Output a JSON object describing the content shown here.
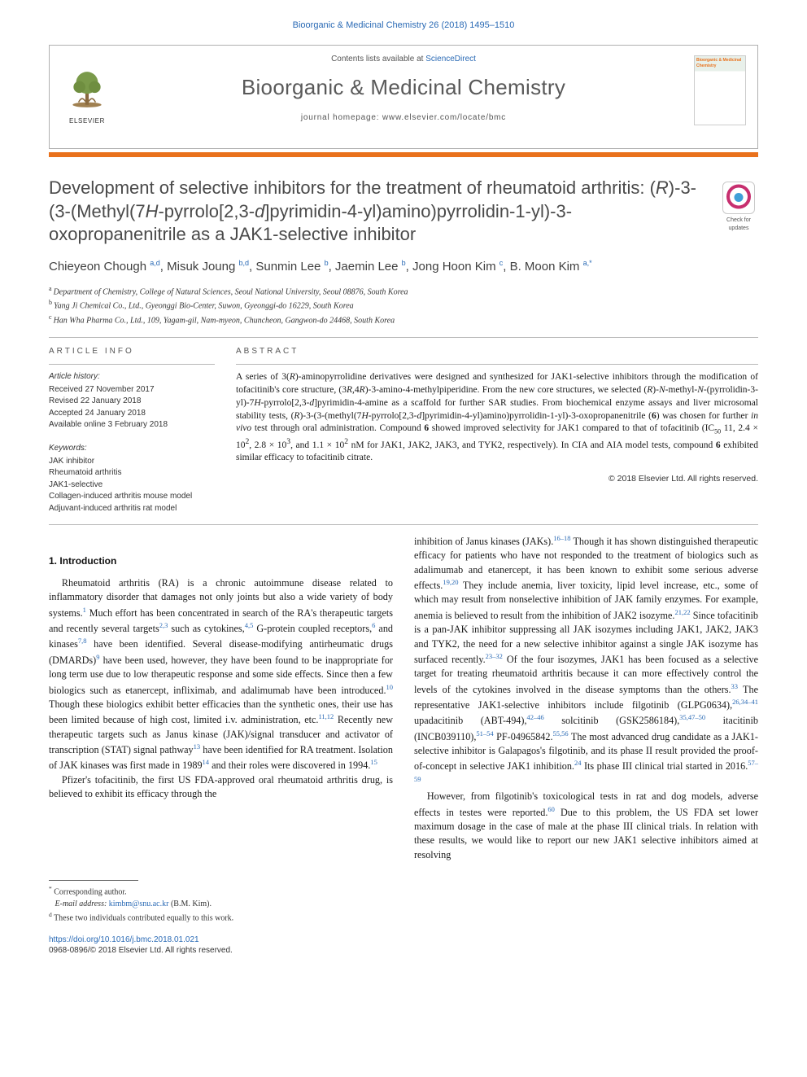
{
  "page_reference": "Bioorganic & Medicinal Chemistry 26 (2018) 1495–1510",
  "header": {
    "contents_line_prefix": "Contents lists available at ",
    "contents_link": "ScienceDirect",
    "journal_name": "Bioorganic & Medicinal Chemistry",
    "homepage_prefix": "journal homepage: ",
    "homepage_url": "www.elsevier.com/locate/bmc",
    "publisher_wordmark": "ELSEVIER",
    "cover_caption": "Bioorganic & Medicinal Chemistry"
  },
  "colors": {
    "accent_bar": "#e9711c",
    "link": "#2a6ab5",
    "heading_gray": "#4a4a4a"
  },
  "article": {
    "title_html": "Development of selective inhibitors for the treatment of rheumatoid arthritis: (<i>R</i>)-3-(3-(Methyl(7<i>H</i>-pyrrolo[2,3-<i>d</i>]pyrimidin-4-yl)amino)pyrrolidin-1-yl)-3-oxopropanenitrile as a JAK1-selective inhibitor",
    "check_updates_label": "Check for updates",
    "authors_html": "Chieyeon Chough <sup>a,d</sup>, Misuk Joung <sup>b,d</sup>, Sunmin Lee <sup>b</sup>, Jaemin Lee <sup>b</sup>, Jong Hoon Kim <sup>c</sup>, B. Moon Kim <sup>a,*</sup>",
    "affiliations": [
      {
        "marker": "a",
        "text": "Department of Chemistry, College of Natural Sciences, Seoul National University, Seoul 08876, South Korea"
      },
      {
        "marker": "b",
        "text": "Yang Ji Chemical Co., Ltd., Gyeonggi Bio-Center, Suwon, Gyeonggi-do 16229, South Korea"
      },
      {
        "marker": "c",
        "text": "Han Wha Pharma Co., Ltd., 109, Yagam-gil, Nam-myeon, Chuncheon, Gangwon-do 24468, South Korea"
      }
    ]
  },
  "meta": {
    "info_heading": "ARTICLE INFO",
    "abstract_heading": "ABSTRACT",
    "history_label": "Article history:",
    "history": [
      "Received 27 November 2017",
      "Revised 22 January 2018",
      "Accepted 24 January 2018",
      "Available online 3 February 2018"
    ],
    "keywords_label": "Keywords:",
    "keywords": [
      "JAK inhibitor",
      "Rheumatoid arthritis",
      "JAK1-selective",
      "Collagen-induced arthritis mouse model",
      "Adjuvant-induced arthritis rat model"
    ],
    "abstract_html": "A series of 3(<i>R</i>)-aminopyrrolidine derivatives were designed and synthesized for JAK1-selective inhibitors through the modification of tofacitinib's core structure, (3<i>R</i>,4<i>R</i>)-3-amino-4-methylpiperidine. From the new core structures, we selected (<i>R</i>)-<i>N</i>-methyl-<i>N</i>-(pyrrolidin-3-yl)-7<i>H</i>-pyrrolo[2,3-<i>d</i>]pyrimidin-4-amine as a scaffold for further SAR studies. From biochemical enzyme assays and liver microsomal stability tests, (<i>R</i>)-3-(3-(methyl(7<i>H</i>-pyrrolo[2,3-<i>d</i>]pyrimidin-4-yl)amino)pyrrolidin-1-yl)-3-oxopropanenitrile (<b>6</b>) was chosen for further <i>in vivo</i> test through oral administration. Compound <b>6</b> showed improved selectivity for JAK1 compared to that of tofacitinib (IC<sub>50</sub> 11, 2.4 × 10<sup>2</sup>, 2.8 × 10<sup>3</sup>, and 1.1 × 10<sup>2</sup> nM for JAK1, JAK2, JAK3, and TYK2, respectively). In CIA and AIA model tests, compound <b>6</b> exhibited similar efficacy to tofacitinib citrate.",
    "copyright": "© 2018 Elsevier Ltd. All rights reserved."
  },
  "sections": {
    "intro_number": "1.",
    "intro_title": "Introduction",
    "col1_p1_html": "Rheumatoid arthritis (RA) is a chronic autoimmune disease related to inflammatory disorder that damages not only joints but also a wide variety of body systems.<sup>1</sup> Much effort has been concentrated in search of the RA's therapeutic targets and recently several targets<sup>2,3</sup> such as cytokines,<sup>4,5</sup> G-protein coupled receptors,<sup>6</sup> and kinases<sup>7,8</sup> have been identified. Several disease-modifying antirheumatic drugs (DMARDs)<sup>9</sup> have been used, however, they have been found to be inappropriate for long term use due to low therapeutic response and some side effects. Since then a few biologics such as etanercept, infliximab, and adalimumab have been introduced.<sup>10</sup> Though these biologics exhibit better efficacies than the synthetic ones, their use has been limited because of high cost, limited i.v. administration, etc.<sup>11,12</sup> Recently new therapeutic targets such as Janus kinase (JAK)/signal transducer and activator of transcription (STAT) signal pathway<sup>13</sup> have been identified for RA treatment. Isolation of JAK kinases was first made in 1989<sup>14</sup> and their roles were discovered in 1994.<sup>15</sup>",
    "col1_p2_html": "Pfizer's tofacitinib, the first US FDA-approved oral rheumatoid arthritis drug, is believed to exhibit its efficacy through the ",
    "col2_p1_html": "inhibition of Janus kinases (JAKs).<sup>16–18</sup> Though it has shown distinguished therapeutic efficacy for patients who have not responded to the treatment of biologics such as adalimumab and etanercept, it has been known to exhibit some serious adverse effects.<sup>19,20</sup> They include anemia, liver toxicity, lipid level increase, etc., some of which may result from nonselective inhibition of JAK family enzymes. For example, anemia is believed to result from the inhibition of JAK2 isozyme.<sup>21,22</sup> Since tofacitinib is a pan-JAK inhibitor suppressing all JAK isozymes including JAK1, JAK2, JAK3 and TYK2, the need for a new selective inhibitor against a single JAK isozyme has surfaced recently.<sup>23–32</sup> Of the four isozymes, JAK1 has been focused as a selective target for treating rheumatoid arthritis because it can more effectively control the levels of the cytokines involved in the disease symptoms than the others.<sup>33</sup> The representative JAK1-selective inhibitors include filgotinib (GLPG0634),<sup>26,34–41</sup> upadacitinib (ABT-494),<sup>42–46</sup> solcitinib (GSK2586184),<sup>35,47–50</sup> itacitinib (INCB039110),<sup>51–54</sup> PF-04965842.<sup>55,56</sup> The most advanced drug candidate as a JAK1-selective inhibitor is Galapagos's filgotinib, and its phase II result provided the proof-of-concept in selective JAK1 inhibition.<sup>24</sup> Its phase III clinical trial started in 2016.<sup>57–59</sup>",
    "col2_p2_html": "However, from filgotinib's toxicological tests in rat and dog models, adverse effects in testes were reported.<sup>60</sup> Due to this problem, the US FDA set lower maximum dosage in the case of male at the phase III clinical trials. In relation with these results, we would like to report our new JAK1 selective inhibitors aimed at resolving"
  },
  "footer": {
    "corresponding_marker": "*",
    "corresponding_label": "Corresponding author.",
    "email_label": "E-mail address:",
    "email": "kimbm@snu.ac.kr",
    "email_attribution": "(B.M. Kim).",
    "contrib_marker": "d",
    "contrib_text": "These two individuals contributed equally to this work.",
    "doi": "https://doi.org/10.1016/j.bmc.2018.01.021",
    "issn_line": "0968-0896/© 2018 Elsevier Ltd. All rights reserved."
  }
}
